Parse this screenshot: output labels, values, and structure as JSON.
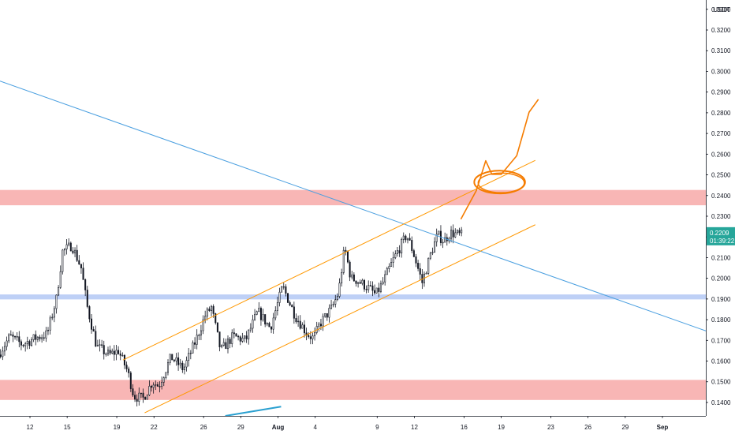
{
  "chart_data": {
    "type": "candlestick",
    "currency": "USDT",
    "y_axis": {
      "ticks": [
        "0.3300",
        "0.3200",
        "0.3100",
        "0.3000",
        "0.2900",
        "0.2800",
        "0.2700",
        "0.2600",
        "0.2500",
        "0.2400",
        "0.2300",
        "0.2200",
        "0.2100",
        "0.2000",
        "0.1900",
        "0.1800",
        "0.1700",
        "0.1600",
        "0.1500",
        "0.1400"
      ],
      "ylim": [
        0.1335,
        0.3345
      ]
    },
    "x_axis": {
      "ticks": [
        {
          "label": "12",
          "date": "2021-07-12"
        },
        {
          "label": "15",
          "date": "2021-07-15"
        },
        {
          "label": "19",
          "date": "2021-07-19"
        },
        {
          "label": "22",
          "date": "2021-07-22"
        },
        {
          "label": "26",
          "date": "2021-07-26"
        },
        {
          "label": "29",
          "date": "2021-07-29"
        },
        {
          "label": "Aug",
          "date": "2021-08-01"
        },
        {
          "label": "4",
          "date": "2021-08-04"
        },
        {
          "label": "9",
          "date": "2021-08-09"
        },
        {
          "label": "12",
          "date": "2021-08-12"
        },
        {
          "label": "16",
          "date": "2021-08-16"
        },
        {
          "label": "19",
          "date": "2021-08-19"
        },
        {
          "label": "23",
          "date": "2021-08-23"
        },
        {
          "label": "26",
          "date": "2021-08-26"
        },
        {
          "label": "29",
          "date": "2021-08-29"
        },
        {
          "label": "Sep",
          "date": "2021-09-01"
        }
      ],
      "xlim": [
        "2021-07-09T14:00",
        "2021-09-04T12:00"
      ]
    },
    "current_price": {
      "value": "0.2209",
      "countdown": "01:39:22",
      "color": "#26a69a"
    },
    "close_path": [
      [
        "2021-07-09T14:00",
        0.163
      ],
      [
        "2021-07-10T12:00",
        0.172
      ],
      [
        "2021-07-11T12:00",
        0.168
      ],
      [
        "2021-07-12T12:00",
        0.171
      ],
      [
        "2021-07-13T12:00",
        0.173
      ],
      [
        "2021-07-14T06:00",
        0.19
      ],
      [
        "2021-07-14T18:00",
        0.213
      ],
      [
        "2021-07-15T12:00",
        0.216
      ],
      [
        "2021-07-16T06:00",
        0.205
      ],
      [
        "2021-07-16T18:00",
        0.186
      ],
      [
        "2021-07-17T12:00",
        0.167
      ],
      [
        "2021-07-18T12:00",
        0.163
      ],
      [
        "2021-07-19T06:00",
        0.165
      ],
      [
        "2021-07-20T00:00",
        0.155
      ],
      [
        "2021-07-20T12:00",
        0.143
      ],
      [
        "2021-07-21T06:00",
        0.142
      ],
      [
        "2021-07-22T00:00",
        0.15
      ],
      [
        "2021-07-22T12:00",
        0.148
      ],
      [
        "2021-07-23T12:00",
        0.162
      ],
      [
        "2021-07-24T12:00",
        0.156
      ],
      [
        "2021-07-25T12:00",
        0.17
      ],
      [
        "2021-07-26T06:00",
        0.182
      ],
      [
        "2021-07-26T18:00",
        0.186
      ],
      [
        "2021-07-27T12:00",
        0.165
      ],
      [
        "2021-07-28T12:00",
        0.172
      ],
      [
        "2021-07-29T12:00",
        0.17
      ],
      [
        "2021-07-30T12:00",
        0.184
      ],
      [
        "2021-07-31T12:00",
        0.176
      ],
      [
        "2021-08-01T12:00",
        0.196
      ],
      [
        "2021-08-02T12:00",
        0.182
      ],
      [
        "2021-08-03T12:00",
        0.173
      ],
      [
        "2021-08-04T00:00",
        0.171
      ],
      [
        "2021-08-04T12:00",
        0.178
      ],
      [
        "2021-08-05T12:00",
        0.186
      ],
      [
        "2021-08-06T00:00",
        0.193
      ],
      [
        "2021-08-06T12:00",
        0.215
      ],
      [
        "2021-08-07T00:00",
        0.2
      ],
      [
        "2021-08-07T12:00",
        0.199
      ],
      [
        "2021-08-08T12:00",
        0.195
      ],
      [
        "2021-08-09T00:00",
        0.192
      ],
      [
        "2021-08-09T12:00",
        0.197
      ],
      [
        "2021-08-10T12:00",
        0.21
      ],
      [
        "2021-08-11T12:00",
        0.221
      ],
      [
        "2021-08-12T00:00",
        0.213
      ],
      [
        "2021-08-12T18:00",
        0.198
      ],
      [
        "2021-08-13T12:00",
        0.213
      ],
      [
        "2021-08-14T00:00",
        0.221
      ],
      [
        "2021-08-14T12:00",
        0.218
      ],
      [
        "2021-08-15T00:00",
        0.222
      ],
      [
        "2021-08-15T18:00",
        0.221
      ]
    ],
    "zones": [
      {
        "name": "resistance-zone",
        "from": 0.2353,
        "to": 0.2427,
        "color": "#f7a9a8",
        "opacity": 0.85
      },
      {
        "name": "support-zone",
        "from": 0.1898,
        "to": 0.1922,
        "color": "#b3c8f5",
        "opacity": 0.85
      },
      {
        "name": "lower-red-zone",
        "from": 0.1412,
        "to": 0.1509,
        "color": "#f7a9a8",
        "opacity": 0.85
      }
    ],
    "lines": [
      {
        "name": "descending-trendline",
        "color": "#4a9fe0",
        "points": [
          [
            "2021-07-09T14:00",
            0.2953
          ],
          [
            "2021-09-04T12:00",
            0.1746
          ]
        ]
      },
      {
        "name": "channel-upper",
        "color": "#ff9800",
        "points": [
          [
            "2021-07-19T12:00",
            0.1605
          ],
          [
            "2021-08-21T18:00",
            0.257
          ]
        ]
      },
      {
        "name": "channel-lower",
        "color": "#ff9800",
        "points": [
          [
            "2021-07-21T06:00",
            0.135
          ],
          [
            "2021-08-21T18:00",
            0.2259
          ]
        ]
      },
      {
        "name": "bottom-blue-segment",
        "color": "#2aa0d0",
        "points": [
          [
            "2021-07-27T18:00",
            0.1335
          ],
          [
            "2021-08-01T06:00",
            0.138
          ]
        ]
      }
    ],
    "projection": {
      "color": "#f57c00",
      "points": [
        [
          "2021-08-15T18:00",
          0.2286
        ],
        [
          "2021-08-17T00:00",
          0.2425
        ],
        [
          "2021-08-17T18:00",
          0.2568
        ],
        [
          "2021-08-18T06:00",
          0.2503
        ],
        [
          "2021-08-19T00:00",
          0.2502
        ],
        [
          "2021-08-20T06:00",
          0.2592
        ],
        [
          "2021-08-21T06:00",
          0.2803
        ],
        [
          "2021-08-22T00:00",
          0.2865
        ]
      ],
      "circle": {
        "center": [
          "2021-08-18T21:00",
          0.2465
        ],
        "rx_days": 2.05,
        "ry": 0.0055
      }
    }
  }
}
